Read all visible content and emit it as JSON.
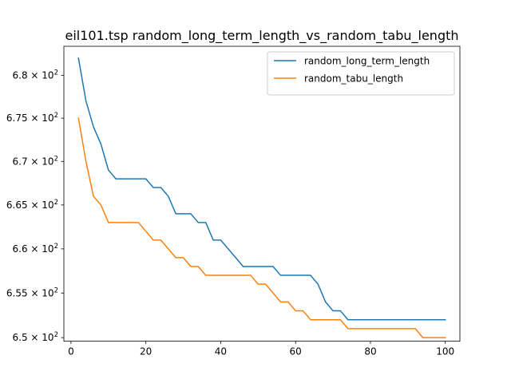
{
  "chart_data": {
    "type": "line",
    "title": "eil101.tsp  random_long_term_length_vs_random_tabu_length",
    "xlabel": "",
    "ylabel": "",
    "xlim": [
      -1.9,
      103.9
    ],
    "ylim": [
      649.6,
      683.4
    ],
    "y_scale": "log",
    "grid": false,
    "legend_position": "top-right",
    "x_ticks": [
      {
        "value": 0,
        "label": "0"
      },
      {
        "value": 20,
        "label": "20"
      },
      {
        "value": 40,
        "label": "40"
      },
      {
        "value": 60,
        "label": "60"
      },
      {
        "value": 80,
        "label": "80"
      },
      {
        "value": 100,
        "label": "100"
      }
    ],
    "y_ticks": [
      {
        "value": 650,
        "mantissa": "6.5",
        "base": "10",
        "exp": "2"
      },
      {
        "value": 655,
        "mantissa": "6.55",
        "base": "10",
        "exp": "2"
      },
      {
        "value": 660,
        "mantissa": "6.6",
        "base": "10",
        "exp": "2"
      },
      {
        "value": 665,
        "mantissa": "6.65",
        "base": "10",
        "exp": "2"
      },
      {
        "value": 670,
        "mantissa": "6.7",
        "base": "10",
        "exp": "2"
      },
      {
        "value": 675,
        "mantissa": "6.75",
        "base": "10",
        "exp": "2"
      },
      {
        "value": 680,
        "mantissa": "6.8",
        "base": "10",
        "exp": "2"
      }
    ],
    "x": [
      2,
      4,
      6,
      8,
      10,
      12,
      14,
      16,
      18,
      20,
      22,
      24,
      26,
      28,
      30,
      32,
      34,
      36,
      38,
      40,
      42,
      44,
      46,
      48,
      50,
      52,
      54,
      56,
      58,
      60,
      62,
      64,
      66,
      68,
      70,
      72,
      74,
      76,
      78,
      80,
      82,
      84,
      86,
      88,
      90,
      92,
      94,
      96,
      98,
      100
    ],
    "series": [
      {
        "name": "random_long_term_length",
        "color": "#1f77b4",
        "values": [
          682,
          677,
          674,
          672,
          669,
          668,
          668,
          668,
          668,
          668,
          667,
          667,
          666,
          664,
          664,
          664,
          663,
          663,
          661,
          661,
          660,
          659,
          658,
          658,
          658,
          658,
          658,
          657,
          657,
          657,
          657,
          657,
          656,
          654,
          653,
          653,
          652,
          652,
          652,
          652,
          652,
          652,
          652,
          652,
          652,
          652,
          652,
          652,
          652,
          652
        ]
      },
      {
        "name": "random_tabu_length",
        "color": "#ff7f0e",
        "values": [
          675,
          670,
          666,
          665,
          663,
          663,
          663,
          663,
          663,
          662,
          661,
          661,
          660,
          659,
          659,
          658,
          658,
          657,
          657,
          657,
          657,
          657,
          657,
          657,
          656,
          656,
          655,
          654,
          654,
          653,
          653,
          652,
          652,
          652,
          652,
          652,
          651,
          651,
          651,
          651,
          651,
          651,
          651,
          651,
          651,
          651,
          650,
          650,
          650,
          650
        ]
      }
    ]
  }
}
